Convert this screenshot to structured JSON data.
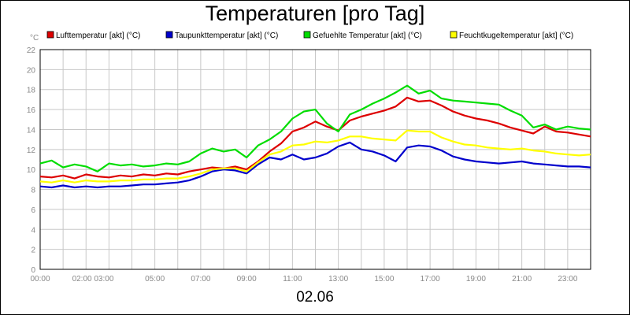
{
  "chart_data": {
    "type": "line",
    "title": "Temperaturen [pro Tag]",
    "xlabel": "02.06",
    "ylabel": "°C",
    "ylim": [
      0,
      22
    ],
    "yticks": [
      0,
      2,
      4,
      6,
      8,
      10,
      12,
      14,
      16,
      18,
      20,
      22
    ],
    "xlim": [
      0,
      24
    ],
    "xtick_labels": [
      {
        "hour": 0,
        "label": "00:00"
      },
      {
        "hour": 2.3,
        "label": "02:00 03:00"
      },
      {
        "hour": 5,
        "label": "05:00"
      },
      {
        "hour": 7,
        "label": "07:00"
      },
      {
        "hour": 9,
        "label": "09:00"
      },
      {
        "hour": 11,
        "label": "11:00"
      },
      {
        "hour": 13,
        "label": "13:00"
      },
      {
        "hour": 15,
        "label": "15:00"
      },
      {
        "hour": 17,
        "label": "17:00"
      },
      {
        "hour": 19,
        "label": "19:00"
      },
      {
        "hour": 21,
        "label": "21:00"
      },
      {
        "hour": 23,
        "label": "23:00"
      }
    ],
    "grid": true,
    "legend_position": "top",
    "series": [
      {
        "name": "Lufttemperatur [akt] (°C)",
        "color": "#dd0000",
        "x": [
          0,
          0.5,
          1,
          1.5,
          2,
          2.5,
          3,
          3.5,
          4,
          4.5,
          5,
          5.5,
          6,
          6.5,
          7,
          7.5,
          8,
          8.5,
          9,
          9.5,
          10,
          10.5,
          11,
          11.5,
          12,
          12.5,
          13,
          13.5,
          14,
          14.5,
          15,
          15.5,
          16,
          16.5,
          17,
          17.5,
          18,
          18.5,
          19,
          19.5,
          20,
          20.5,
          21,
          21.5,
          22,
          22.5,
          23,
          23.5,
          24
        ],
        "values": [
          9.3,
          9.2,
          9.4,
          9.1,
          9.5,
          9.3,
          9.2,
          9.4,
          9.3,
          9.5,
          9.4,
          9.6,
          9.5,
          9.8,
          10.0,
          10.2,
          10.1,
          10.3,
          10.0,
          10.8,
          11.8,
          12.6,
          13.8,
          14.2,
          14.8,
          14.3,
          13.9,
          14.9,
          15.3,
          15.6,
          15.9,
          16.3,
          17.2,
          16.8,
          16.9,
          16.4,
          15.8,
          15.4,
          15.1,
          14.9,
          14.6,
          14.2,
          13.9,
          13.6,
          14.3,
          13.8,
          13.7,
          13.5,
          13.3
        ]
      },
      {
        "name": "Taupunkttemperatur [akt] (°C)",
        "color": "#0000cc",
        "x": [
          0,
          0.5,
          1,
          1.5,
          2,
          2.5,
          3,
          3.5,
          4,
          4.5,
          5,
          5.5,
          6,
          6.5,
          7,
          7.5,
          8,
          8.5,
          9,
          9.5,
          10,
          10.5,
          11,
          11.5,
          12,
          12.5,
          13,
          13.5,
          14,
          14.5,
          15,
          15.5,
          16,
          16.5,
          17,
          17.5,
          18,
          18.5,
          19,
          19.5,
          20,
          20.5,
          21,
          21.5,
          22,
          22.5,
          23,
          23.5,
          24
        ],
        "values": [
          8.3,
          8.2,
          8.4,
          8.2,
          8.3,
          8.2,
          8.3,
          8.3,
          8.4,
          8.5,
          8.5,
          8.6,
          8.7,
          8.9,
          9.3,
          9.8,
          10.0,
          9.9,
          9.6,
          10.5,
          11.2,
          11.0,
          11.5,
          11.0,
          11.2,
          11.6,
          12.3,
          12.7,
          12.0,
          11.8,
          11.4,
          10.8,
          12.2,
          12.4,
          12.3,
          11.9,
          11.3,
          11.0,
          10.8,
          10.7,
          10.6,
          10.7,
          10.8,
          10.6,
          10.5,
          10.4,
          10.3,
          10.3,
          10.2
        ]
      },
      {
        "name": "Gefuehlte Temperatur [akt] (°C)",
        "color": "#00dd00",
        "x": [
          0,
          0.5,
          1,
          1.5,
          2,
          2.5,
          3,
          3.5,
          4,
          4.5,
          5,
          5.5,
          6,
          6.5,
          7,
          7.5,
          8,
          8.5,
          9,
          9.5,
          10,
          10.5,
          11,
          11.5,
          12,
          12.5,
          13,
          13.5,
          14,
          14.5,
          15,
          15.5,
          16,
          16.5,
          17,
          17.5,
          18,
          18.5,
          19,
          19.5,
          20,
          20.5,
          21,
          21.5,
          22,
          22.5,
          23,
          23.5,
          24
        ],
        "values": [
          10.6,
          10.9,
          10.2,
          10.5,
          10.3,
          9.8,
          10.6,
          10.4,
          10.5,
          10.3,
          10.4,
          10.6,
          10.5,
          10.8,
          11.6,
          12.1,
          11.8,
          12.0,
          11.2,
          12.4,
          13.0,
          13.8,
          15.1,
          15.8,
          16.0,
          14.6,
          13.8,
          15.5,
          16.0,
          16.6,
          17.1,
          17.7,
          18.4,
          17.6,
          17.9,
          17.1,
          16.9,
          16.8,
          16.7,
          16.6,
          16.5,
          15.9,
          15.4,
          14.2,
          14.5,
          14.0,
          14.3,
          14.1,
          14.0
        ]
      },
      {
        "name": "Feuchtkugeltemperatur [akt] (°C)",
        "color": "#ffff00",
        "x": [
          0,
          0.5,
          1,
          1.5,
          2,
          2.5,
          3,
          3.5,
          4,
          4.5,
          5,
          5.5,
          6,
          6.5,
          7,
          7.5,
          8,
          8.5,
          9,
          9.5,
          10,
          10.5,
          11,
          11.5,
          12,
          12.5,
          13,
          13.5,
          14,
          14.5,
          15,
          15.5,
          16,
          16.5,
          17,
          17.5,
          18,
          18.5,
          19,
          19.5,
          20,
          20.5,
          21,
          21.5,
          22,
          22.5,
          23,
          23.5,
          24
        ],
        "values": [
          8.8,
          8.7,
          8.9,
          8.7,
          8.9,
          8.8,
          8.8,
          8.9,
          8.9,
          9.0,
          9.0,
          9.1,
          9.1,
          9.3,
          9.6,
          10.0,
          10.1,
          10.1,
          9.8,
          10.7,
          11.5,
          11.8,
          12.4,
          12.5,
          12.8,
          12.7,
          12.9,
          13.3,
          13.3,
          13.1,
          13.0,
          12.9,
          13.9,
          13.8,
          13.8,
          13.2,
          12.8,
          12.5,
          12.4,
          12.2,
          12.1,
          12.0,
          12.1,
          11.9,
          11.8,
          11.6,
          11.5,
          11.4,
          11.5
        ]
      }
    ]
  }
}
